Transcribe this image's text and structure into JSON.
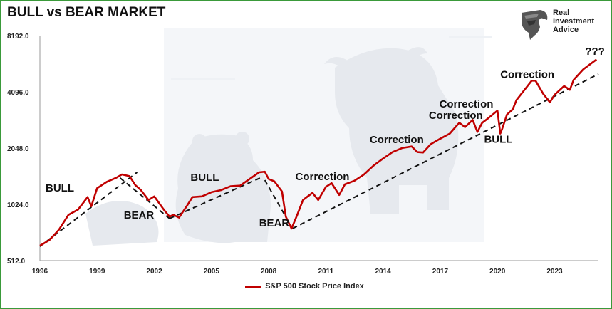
{
  "colors": {
    "series": "#c00000",
    "trend": "#111111",
    "frame": "#3a9a3a",
    "watermark": "#e8ecf1"
  },
  "logo": {
    "icon": "eagle-head-icon",
    "lines": [
      "Real",
      "Investment",
      "Advice"
    ]
  },
  "chart_data": {
    "type": "line",
    "title": "BULL vs BEAR MARKET",
    "yscale": "log2",
    "ylim": [
      512,
      8192
    ],
    "xlim": [
      1996,
      2025.3
    ],
    "yticks": [
      "512.0",
      "1024.0",
      "2048.0",
      "4096.0",
      "8192.0"
    ],
    "xticks": [
      "1996",
      "1999",
      "2002",
      "2005",
      "2008",
      "2011",
      "2014",
      "2017",
      "2020",
      "2023"
    ],
    "legend": {
      "position": "bottom-center",
      "entries": [
        "S&P 500 Stock Price Index"
      ]
    },
    "series": [
      {
        "name": "S&P 500 Stock Price Index",
        "x": [
          1996.0,
          1996.5,
          1997.0,
          1997.5,
          1998.0,
          1998.5,
          1998.7,
          1999.0,
          1999.5,
          2000.0,
          2000.3,
          2000.7,
          2001.0,
          2001.3,
          2001.7,
          2002.0,
          2002.5,
          2002.8,
          2003.0,
          2003.3,
          2003.7,
          2004.0,
          2004.5,
          2005.0,
          2005.5,
          2006.0,
          2006.5,
          2007.0,
          2007.5,
          2007.8,
          2008.0,
          2008.3,
          2008.7,
          2008.9,
          2009.2,
          2009.5,
          2009.8,
          2010.0,
          2010.3,
          2010.6,
          2011.0,
          2011.3,
          2011.7,
          2012.0,
          2012.5,
          2013.0,
          2013.5,
          2014.0,
          2014.5,
          2015.0,
          2015.5,
          2015.8,
          2016.1,
          2016.5,
          2017.0,
          2017.5,
          2018.0,
          2018.3,
          2018.7,
          2018.95,
          2019.2,
          2019.5,
          2020.0,
          2020.15,
          2020.25,
          2020.5,
          2020.8,
          2021.0,
          2021.5,
          2021.8,
          2022.0,
          2022.4,
          2022.75,
          2023.0,
          2023.5,
          2023.8,
          2024.0,
          2024.5,
          2025.0,
          2025.2
        ],
        "values": [
          615,
          660,
          750,
          900,
          960,
          1120,
          1000,
          1250,
          1350,
          1420,
          1480,
          1450,
          1300,
          1220,
          1080,
          1130,
          960,
          880,
          900,
          870,
          1000,
          1120,
          1130,
          1190,
          1220,
          1280,
          1290,
          1400,
          1520,
          1530,
          1400,
          1360,
          1200,
          880,
          760,
          900,
          1080,
          1120,
          1180,
          1080,
          1270,
          1330,
          1150,
          1310,
          1370,
          1480,
          1650,
          1800,
          1950,
          2050,
          2090,
          1950,
          1940,
          2150,
          2300,
          2450,
          2800,
          2650,
          2900,
          2500,
          2800,
          2950,
          3250,
          2450,
          2600,
          3100,
          3300,
          3700,
          4300,
          4700,
          4700,
          4000,
          3600,
          3950,
          4400,
          4200,
          4750,
          5400,
          5900,
          6100
        ]
      }
    ],
    "trendlines": [
      {
        "x": [
          1996.0,
          2001.1
        ],
        "values": [
          610,
          1520
        ]
      },
      {
        "x": [
          2000.2,
          2002.8
        ],
        "values": [
          1420,
          860
        ]
      },
      {
        "x": [
          2002.8,
          2007.7
        ],
        "values": [
          860,
          1440
        ]
      },
      {
        "x": [
          2007.8,
          2009.25
        ],
        "values": [
          1380,
          760
        ]
      },
      {
        "x": [
          2009.25,
          2025.3
        ],
        "values": [
          760,
          5100
        ]
      }
    ],
    "annotations": [
      {
        "text": "BULL",
        "x": 1996.3,
        "y": 1200
      },
      {
        "text": "BEAR",
        "x": 2000.4,
        "y": 860
      },
      {
        "text": "BULL",
        "x": 2003.9,
        "y": 1370
      },
      {
        "text": "BEAR",
        "x": 2007.5,
        "y": 780
      },
      {
        "text": "Correction",
        "x": 2009.4,
        "y": 1380
      },
      {
        "text": "Correction",
        "x": 2013.3,
        "y": 2180
      },
      {
        "text": "Correction",
        "x": 2016.4,
        "y": 2930
      },
      {
        "text": "Correction",
        "x": 2016.95,
        "y": 3380
      },
      {
        "text": "BULL",
        "x": 2019.3,
        "y": 2190
      },
      {
        "text": "Correction",
        "x": 2020.15,
        "y": 4870
      },
      {
        "text": "???",
        "x": 2024.6,
        "y": 6450
      }
    ]
  }
}
